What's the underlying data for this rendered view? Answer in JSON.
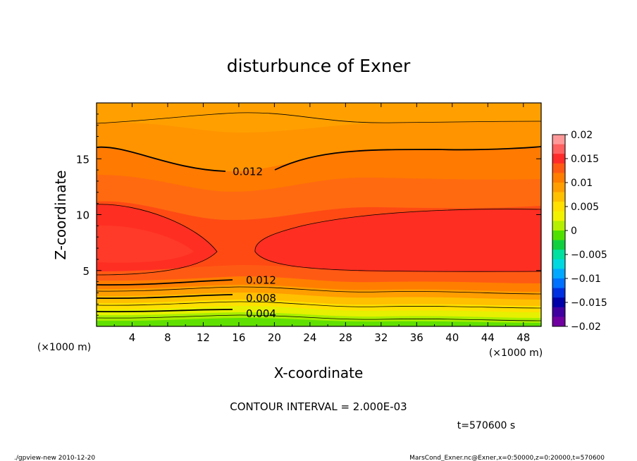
{
  "chart_data": {
    "type": "contour",
    "title": "disturbunce of Exner",
    "xlabel": "X-coordinate",
    "ylabel": "Z-coordinate",
    "x_unit": "(×1000 m)",
    "y_unit": "(×1000 m)",
    "xlim": [
      0,
      50
    ],
    "ylim": [
      0,
      20
    ],
    "x_ticks": [
      "4",
      "8",
      "12",
      "16",
      "20",
      "24",
      "28",
      "32",
      "36",
      "40",
      "44",
      "48"
    ],
    "y_ticks": [
      "5",
      "10",
      "15"
    ],
    "contour_interval_text": "CONTOUR INTERVAL = 2.000E-03",
    "contour_labels": [
      {
        "text": "0.012",
        "x": 17,
        "z": 13.9
      },
      {
        "text": "0.012",
        "x": 18.5,
        "z": 4.2
      },
      {
        "text": "0.008",
        "x": 18.5,
        "z": 2.6
      },
      {
        "text": "0.004",
        "x": 18.5,
        "z": 1.2
      }
    ],
    "colorbar": {
      "labels": [
        "0.02",
        "0.015",
        "0.01",
        "0.005",
        "0",
        "−0.005",
        "−0.01",
        "−0.015",
        "−0.02"
      ],
      "colors": [
        "#ff9999",
        "#ff6060",
        "#ff2a2a",
        "#ff5a14",
        "#ff7e00",
        "#ff9e00",
        "#ffc000",
        "#ffe000",
        "#f2f200",
        "#b4f000",
        "#50e000",
        "#10d040",
        "#00e0a0",
        "#00d8e0",
        "#00a8ff",
        "#0070ff",
        "#0030e0",
        "#0000a8",
        "#4000a0",
        "#7000a0"
      ]
    },
    "time_text": "t=570600 s"
  },
  "footer": {
    "left": "./gpview-new  2010-12-20",
    "right": "MarsCond_Exner.nc@Exner,x=0:50000,z=0:20000,t=570600"
  }
}
